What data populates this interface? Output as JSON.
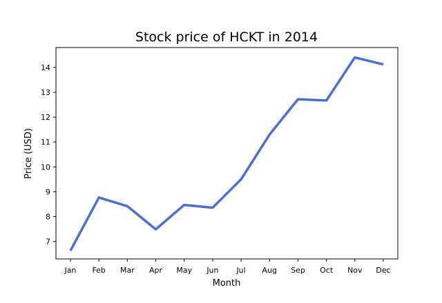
{
  "chart_data": {
    "type": "line",
    "title": "Stock price of HCKT in 2014",
    "xlabel": "Month",
    "ylabel": "Price (USD)",
    "categories": [
      "Jan",
      "Feb",
      "Mar",
      "Apr",
      "May",
      "Jun",
      "Jul",
      "Aug",
      "Sep",
      "Oct",
      "Nov",
      "Dec"
    ],
    "series": [
      {
        "values": [
          6.63,
          8.77,
          8.42,
          7.49,
          8.47,
          8.36,
          9.5,
          11.3,
          12.72,
          12.67,
          14.4,
          14.12
        ],
        "color": "#4a6fd3"
      }
    ],
    "yticks": [
      7,
      8,
      9,
      10,
      11,
      12,
      13,
      14
    ],
    "ylim": [
      6.3,
      14.8
    ],
    "grid": false,
    "legend": "none"
  }
}
